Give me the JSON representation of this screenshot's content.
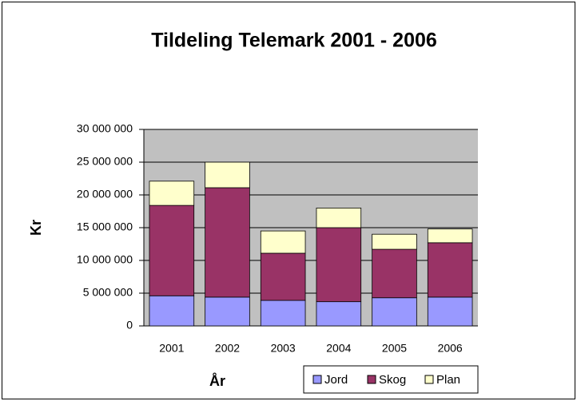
{
  "chart_data": {
    "type": "bar",
    "stacked": true,
    "title": "Tildeling Telemark 2001 - 2006",
    "x_label": "År",
    "y_label": "Kr",
    "categories": [
      "2001",
      "2002",
      "2003",
      "2004",
      "2005",
      "2006"
    ],
    "series": [
      {
        "name": "Jord",
        "color": "#9999ff",
        "values": [
          4600000,
          4400000,
          3900000,
          3700000,
          4300000,
          4400000
        ]
      },
      {
        "name": "Skog",
        "color": "#993366",
        "values": [
          13800000,
          16700000,
          7200000,
          11300000,
          7400000,
          8300000
        ]
      },
      {
        "name": "Plan",
        "color": "#ffffcc",
        "values": [
          3700000,
          3900000,
          3400000,
          3000000,
          2300000,
          2100000
        ]
      }
    ],
    "ylim": [
      0,
      30000000
    ],
    "yticks": [
      0,
      {
        "value": 5000000,
        "label": "5 000 000"
      },
      {
        "value": 10000000,
        "label": "10 000 000"
      },
      {
        "value": 15000000,
        "label": "15 000 000"
      },
      {
        "value": 20000000,
        "label": "20 000 000"
      },
      {
        "value": 25000000,
        "label": "25 000 000"
      },
      {
        "value": 30000000,
        "label": "30 000 000"
      }
    ],
    "grid": true,
    "plot_background": "#c0c0c0",
    "legend_position": "bottom-right"
  }
}
